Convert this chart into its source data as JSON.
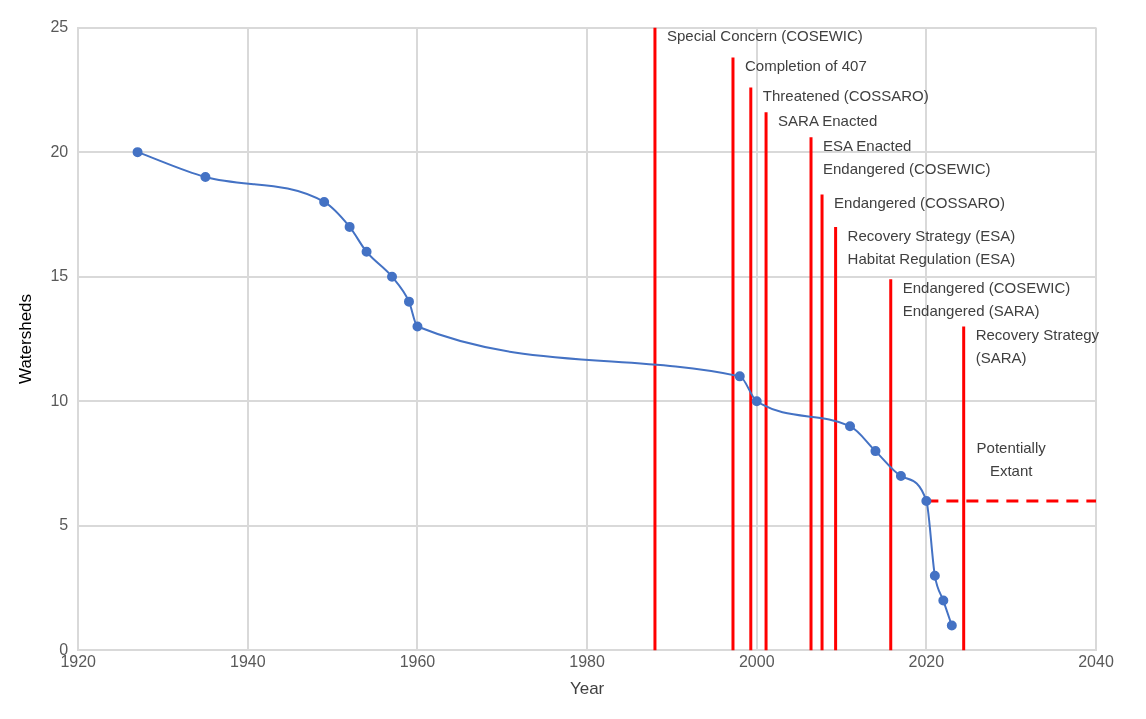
{
  "chart_data": {
    "type": "line",
    "xlabel": "Year",
    "ylabel": "Watersheds",
    "xlim": [
      1920,
      2040
    ],
    "xticks": [
      1920,
      1940,
      1960,
      1980,
      2000,
      2020,
      2040
    ],
    "ylim": [
      0,
      25
    ],
    "yticks": [
      0,
      5,
      10,
      15,
      20,
      25
    ],
    "grid": true,
    "series": [
      {
        "color": "#4472c4",
        "marker": "circle",
        "line_style": "solid",
        "x": [
          1927,
          1935,
          1949,
          1952,
          1954,
          1957,
          1959,
          1960,
          1998,
          2000,
          2011,
          2014,
          2017,
          2020,
          2021,
          2022,
          2023
        ],
        "values": [
          20,
          19,
          18,
          17,
          16,
          15,
          14,
          13,
          11,
          10,
          9,
          8,
          7,
          6,
          3,
          2,
          1
        ]
      },
      {
        "color": "#ff0000",
        "marker": "none",
        "line_style": "solid",
        "x": [
          1988,
          1988
        ],
        "values": [
          0,
          25
        ]
      },
      {
        "color": "#ff0000",
        "marker": "none",
        "line_style": "solid",
        "x": [
          1997.2,
          1997.2
        ],
        "values": [
          0,
          23.8
        ]
      },
      {
        "color": "#ff0000",
        "marker": "none",
        "line_style": "solid",
        "x": [
          1999.3,
          1999.3
        ],
        "values": [
          0,
          22.6
        ]
      },
      {
        "color": "#ff0000",
        "marker": "none",
        "line_style": "solid",
        "x": [
          2001.1,
          2001.1
        ],
        "values": [
          0,
          21.6
        ]
      },
      {
        "color": "#ff0000",
        "marker": "none",
        "line_style": "solid",
        "x": [
          2006.4,
          2006.4
        ],
        "values": [
          0,
          20.6
        ]
      },
      {
        "color": "#ff0000",
        "marker": "none",
        "line_style": "solid",
        "x": [
          2007.7,
          2007.7
        ],
        "values": [
          0,
          18.3
        ]
      },
      {
        "color": "#ff0000",
        "marker": "none",
        "line_style": "solid",
        "x": [
          2009.3,
          2009.3
        ],
        "values": [
          0,
          17
        ]
      },
      {
        "color": "#ff0000",
        "marker": "none",
        "line_style": "solid",
        "x": [
          2015.8,
          2015.8
        ],
        "values": [
          0,
          14.9
        ]
      },
      {
        "color": "#ff0000",
        "marker": "none",
        "line_style": "solid",
        "x": [
          2024.4,
          2024.4
        ],
        "values": [
          0,
          13
        ]
      },
      {
        "color": "#ff0000",
        "marker": "none",
        "line_style": "dashed",
        "x": [
          2020,
          2040
        ],
        "values": [
          6,
          6
        ]
      }
    ],
    "annotations": [
      {
        "text": "Special Concern (COSEWIC)",
        "x": 1988,
        "y": 25
      },
      {
        "text": "Completion of 407",
        "x": 1997.2,
        "y": 23.8
      },
      {
        "text": "Threatened (COSSARO)",
        "x": 1999.3,
        "y": 22.6
      },
      {
        "text": "SARA Enacted",
        "x": 2001.1,
        "y": 21.6
      },
      {
        "text": "ESA Enacted\nEndangered (COSEWIC)",
        "x": 2006.4,
        "y": 20.6
      },
      {
        "text": "Endangered (COSSARO)",
        "x": 2007.7,
        "y": 18.3
      },
      {
        "text": "Recovery Strategy (ESA)\nHabitat Regulation (ESA)",
        "x": 2009.3,
        "y": 17
      },
      {
        "text": "Endangered (COSEWIC)\nEndangered (SARA)",
        "x": 2015.8,
        "y": 14.9
      },
      {
        "text": "Recovery Strategy\n(SARA)",
        "x": 2024.4,
        "y": 13
      },
      "Potentially\nExtant"
    ]
  }
}
